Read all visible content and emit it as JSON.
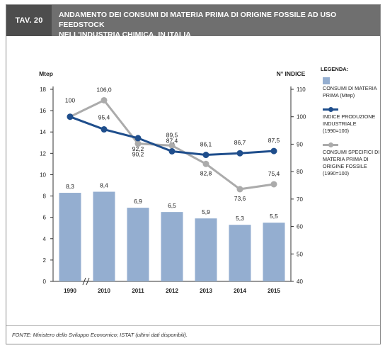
{
  "header": {
    "tav_label": "TAV. 20",
    "title_line1": "ANDAMENTO DEI CONSUMI DI MATERIA PRIMA DI ORIGINE FOSSILE AD USO FEEDSTOCK",
    "title_line2": "NELL'INDUSTRIA CHIMICA, IN ITALIA"
  },
  "legend": {
    "title": "LEGENDA:",
    "items": [
      {
        "label": "CONSUMI DI MATERIA PRIMA (Mtep)",
        "color": "#94aed0",
        "kind": "bar"
      },
      {
        "label": "INDICE PRODUZIONE INDUSTRIALE (1990=100)",
        "color": "#1f4e8c",
        "kind": "line"
      },
      {
        "label": "CONSUMI SPECIFICI DI MATERIA PRIMA DI ORIGINE FOSSILE (1990=100)",
        "color": "#ababab",
        "kind": "line"
      }
    ]
  },
  "source": "FONTE: Ministero dello Sviluppo Economico; ISTAT (ultimi dati disponibili).",
  "chart_data": {
    "type": "bar",
    "categories": [
      "1990",
      "2010",
      "2011",
      "2012",
      "2013",
      "2014",
      "2015"
    ],
    "left_axis": {
      "label": "Mtep",
      "ylim": [
        0,
        18
      ],
      "ticks": [
        0,
        2,
        4,
        6,
        8,
        10,
        12,
        14,
        16,
        18
      ]
    },
    "right_axis": {
      "label": "N° INDICE",
      "ylim": [
        40,
        110
      ],
      "ticks": [
        40,
        50,
        60,
        70,
        80,
        90,
        100,
        110
      ]
    },
    "axis_break_after": "1990",
    "grid": false,
    "legend_position": "right",
    "series": [
      {
        "name": "CONSUMI DI MATERIA PRIMA (Mtep)",
        "type": "bar",
        "axis": "left",
        "color": "#94aed0",
        "values": [
          8.3,
          8.4,
          6.9,
          6.5,
          5.9,
          5.3,
          5.5
        ],
        "labels": [
          "8,3",
          "8,4",
          "6,9",
          "6,5",
          "5,9",
          "5,3",
          "5,5"
        ]
      },
      {
        "name": "INDICE PRODUZIONE INDUSTRIALE (1990=100)",
        "type": "line",
        "axis": "right",
        "color": "#1f4e8c",
        "values": [
          100,
          95.4,
          92.2,
          87.4,
          86.1,
          86.7,
          87.5
        ],
        "labels": [
          "100",
          "95,4",
          "92,2",
          "87,4",
          "86,1",
          "86,7",
          "87,5"
        ]
      },
      {
        "name": "CONSUMI SPECIFICI DI MATERIA PRIMA DI ORIGINE FOSSILE (1990=100)",
        "type": "line",
        "axis": "right",
        "color": "#ababab",
        "values": [
          100,
          106.0,
          90.2,
          89.5,
          82.8,
          73.6,
          75.4
        ],
        "labels": [
          "100",
          "106,0",
          "90,2",
          "89,5",
          "82,8",
          "73,6",
          "75,4"
        ]
      }
    ]
  }
}
